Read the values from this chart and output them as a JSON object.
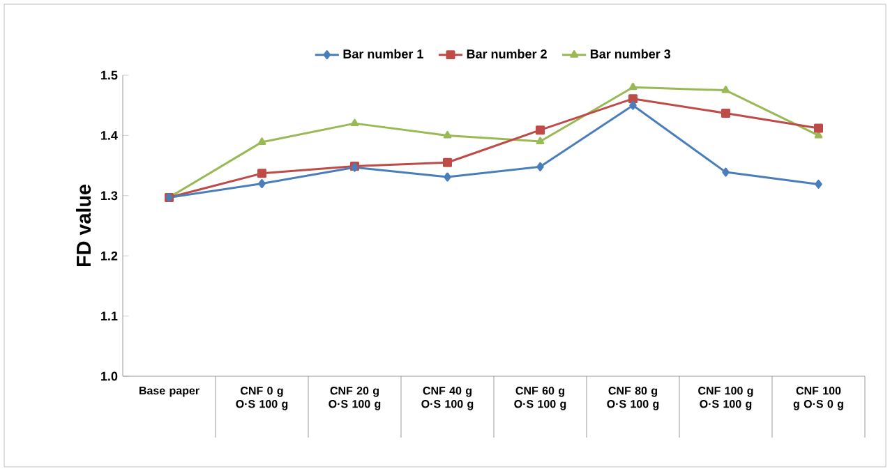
{
  "chart_data": {
    "type": "line",
    "ylabel": "FD value",
    "categories": [
      "Base paper",
      "CNF 0 g O·S 100 g",
      "CNF 20 g O·S 100 g",
      "CNF 40 g O·S 100 g",
      "CNF 60 g O·S 100 g",
      "CNF 80 g O·S 100 g",
      "CNF 100 g O·S 100 g",
      "CNF 100 g O·S 0 g"
    ],
    "series": [
      {
        "name": "Bar number 1",
        "color": "#4a7ebb",
        "marker": "diamond",
        "values": [
          1.297,
          1.32,
          1.347,
          1.331,
          1.348,
          1.45,
          1.339,
          1.319
        ]
      },
      {
        "name": "Bar number 2",
        "color": "#be4b48",
        "marker": "square",
        "values": [
          1.297,
          1.337,
          1.349,
          1.355,
          1.409,
          1.461,
          1.437,
          1.412
        ]
      },
      {
        "name": "Bar number 3",
        "color": "#98b954",
        "marker": "triangle",
        "values": [
          1.297,
          1.389,
          1.42,
          1.4,
          1.39,
          1.48,
          1.475,
          1.4
        ]
      }
    ],
    "ylim": [
      1.0,
      1.5
    ],
    "yticks": [
      {
        "value": 1.0,
        "label": "1.0"
      },
      {
        "value": 1.1,
        "label": "1.1"
      },
      {
        "value": 1.2,
        "label": "1.2"
      },
      {
        "value": 1.3,
        "label": "1.3"
      },
      {
        "value": 1.4,
        "label": "1.4"
      },
      {
        "value": 1.5,
        "label": "1.5"
      }
    ],
    "grid": false,
    "legend": "top",
    "line_style": "solid"
  }
}
